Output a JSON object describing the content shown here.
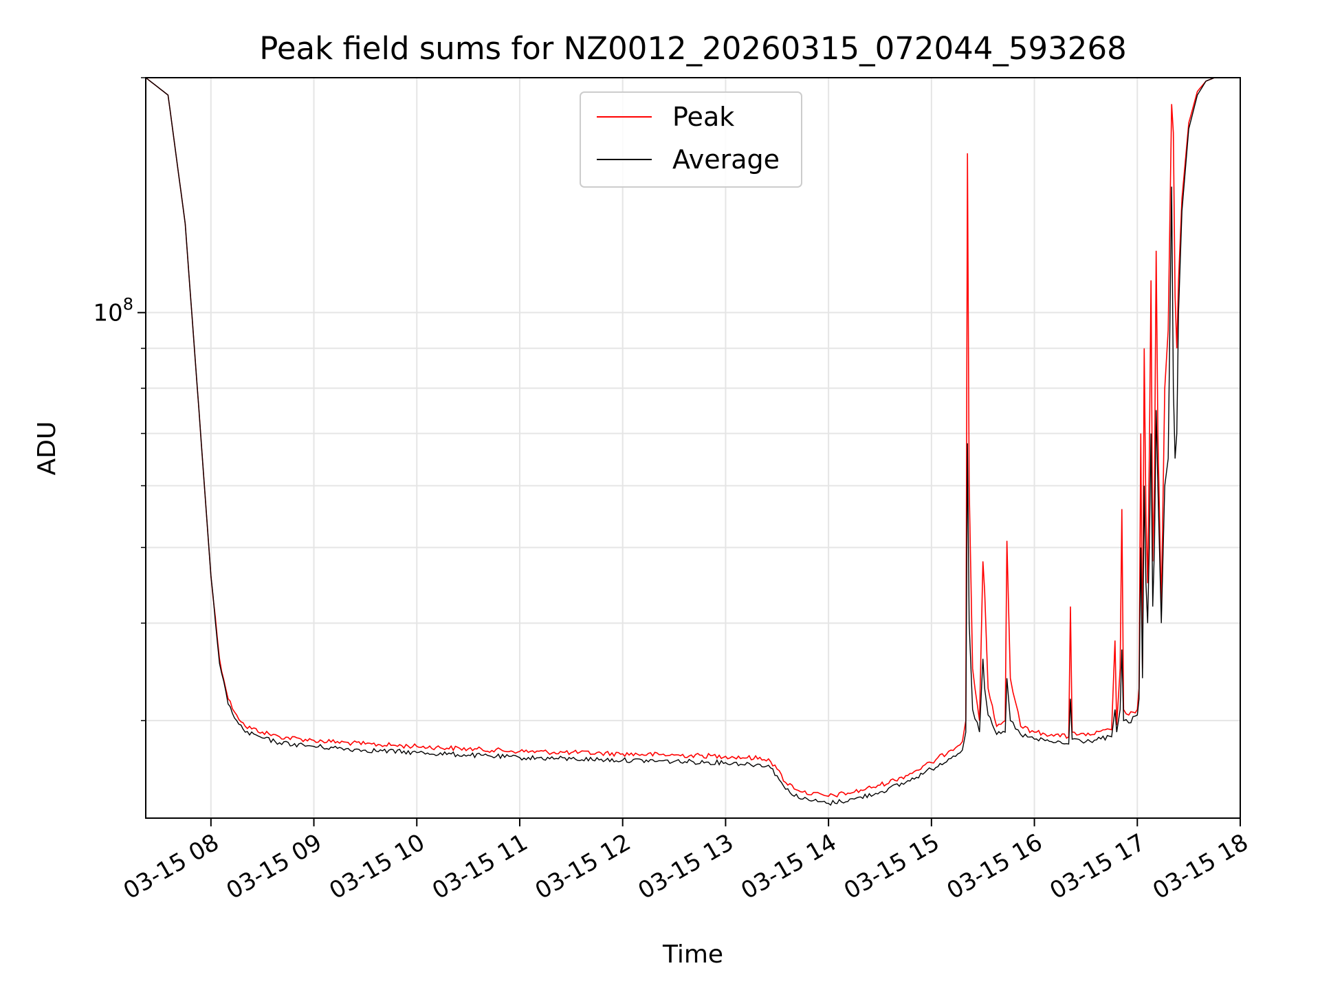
{
  "chart_data": {
    "type": "line",
    "title": "Peak field sums for NZ0012_20260315_072044_593268",
    "xlabel": "Time",
    "ylabel": "ADU",
    "x_scale": "time",
    "y_scale": "log",
    "grid": true,
    "grid_minor": true,
    "legend_position": "top-center",
    "xlim": [
      "2026-03-15 07:22",
      "2026-03-15 18:00"
    ],
    "ylim": [
      22500000.0,
      200000000.0
    ],
    "x_tick_labels": [
      "03-15 08",
      "03-15 09",
      "03-15 10",
      "03-15 11",
      "03-15 12",
      "03-15 13",
      "03-15 14",
      "03-15 15",
      "03-15 16",
      "03-15 17",
      "03-15 18"
    ],
    "x_ticks": [
      "2026-03-15 08:00",
      "2026-03-15 09:00",
      "2026-03-15 10:00",
      "2026-03-15 11:00",
      "2026-03-15 12:00",
      "2026-03-15 13:00",
      "2026-03-15 14:00",
      "2026-03-15 15:00",
      "2026-03-15 16:00",
      "2026-03-15 17:00",
      "2026-03-15 18:00"
    ],
    "y_major_ticks": [
      100000000
    ],
    "y_tick_labels": [
      "10^8"
    ],
    "y_minor_ticks": [
      30000000,
      40000000,
      50000000,
      60000000,
      70000000,
      80000000,
      90000000,
      200000000
    ],
    "series": [
      {
        "name": "Peak",
        "color": "#ff0000",
        "x": [
          "2026-03-15 07:22",
          "2026-03-15 07:35",
          "2026-03-15 07:45",
          "2026-03-15 07:53",
          "2026-03-15 08:00",
          "2026-03-15 08:05",
          "2026-03-15 08:10",
          "2026-03-15 08:15",
          "2026-03-15 08:20",
          "2026-03-15 08:30",
          "2026-03-15 08:40",
          "2026-03-15 09:00",
          "2026-03-15 09:30",
          "2026-03-15 10:00",
          "2026-03-15 10:30",
          "2026-03-15 11:00",
          "2026-03-15 11:30",
          "2026-03-15 12:00",
          "2026-03-15 12:30",
          "2026-03-15 13:00",
          "2026-03-15 13:25",
          "2026-03-15 13:30",
          "2026-03-15 13:35",
          "2026-03-15 13:45",
          "2026-03-15 14:00",
          "2026-03-15 14:15",
          "2026-03-15 14:30",
          "2026-03-15 14:45",
          "2026-03-15 15:00",
          "2026-03-15 15:10",
          "2026-03-15 15:18",
          "2026-03-15 15:20",
          "2026-03-15 15:21",
          "2026-03-15 15:22",
          "2026-03-15 15:24",
          "2026-03-15 15:28",
          "2026-03-15 15:30",
          "2026-03-15 15:31",
          "2026-03-15 15:33",
          "2026-03-15 15:38",
          "2026-03-15 15:43",
          "2026-03-15 15:44",
          "2026-03-15 15:46",
          "2026-03-15 15:52",
          "2026-03-15 16:00",
          "2026-03-15 16:10",
          "2026-03-15 16:20",
          "2026-03-15 16:21",
          "2026-03-15 16:22",
          "2026-03-15 16:30",
          "2026-03-15 16:45",
          "2026-03-15 16:47",
          "2026-03-15 16:48",
          "2026-03-15 16:50",
          "2026-03-15 16:51",
          "2026-03-15 16:52",
          "2026-03-15 16:55",
          "2026-03-15 17:00",
          "2026-03-15 17:01",
          "2026-03-15 17:02",
          "2026-03-15 17:03",
          "2026-03-15 17:04",
          "2026-03-15 17:05",
          "2026-03-15 17:06",
          "2026-03-15 17:07",
          "2026-03-15 17:08",
          "2026-03-15 17:09",
          "2026-03-15 17:10",
          "2026-03-15 17:11",
          "2026-03-15 17:12",
          "2026-03-15 17:14",
          "2026-03-15 17:16",
          "2026-03-15 17:18",
          "2026-03-15 17:20",
          "2026-03-15 17:21",
          "2026-03-15 17:22",
          "2026-03-15 17:23",
          "2026-03-15 17:24",
          "2026-03-15 17:26",
          "2026-03-15 17:30",
          "2026-03-15 17:35",
          "2026-03-15 17:40",
          "2026-03-15 17:45",
          "2026-03-15 17:50",
          "2026-03-15 18:00"
        ],
        "y": [
          200000000,
          190000000,
          130000000,
          75000000,
          46000000,
          36000000,
          32000000,
          30500000,
          29500000,
          29000000,
          28600000,
          28300000,
          28000000,
          27800000,
          27600000,
          27400000,
          27300000,
          27200000,
          27100000,
          27000000,
          26800000,
          26000000,
          25000000,
          24300000,
          24000000,
          24300000,
          24800000,
          25500000,
          26500000,
          27400000,
          28200000,
          30000000,
          160000000,
          60000000,
          35000000,
          30000000,
          48000000,
          44000000,
          33000000,
          29500000,
          30000000,
          51000000,
          34000000,
          29500000,
          29000000,
          28800000,
          28600000,
          42000000,
          29000000,
          28700000,
          29200000,
          38000000,
          29600000,
          35000000,
          56000000,
          31000000,
          30500000,
          31000000,
          33000000,
          70000000,
          35000000,
          90000000,
          55000000,
          45000000,
          65000000,
          110000000,
          48000000,
          60000000,
          120000000,
          70000000,
          42000000,
          80000000,
          95000000,
          185000000,
          170000000,
          105000000,
          90000000,
          110000000,
          140000000,
          175000000,
          192000000,
          198000000,
          200000000,
          200000000,
          200000000
        ]
      },
      {
        "name": "Average",
        "color": "#000000",
        "x": [
          "2026-03-15 07:22",
          "2026-03-15 07:35",
          "2026-03-15 07:45",
          "2026-03-15 07:53",
          "2026-03-15 08:00",
          "2026-03-15 08:05",
          "2026-03-15 08:10",
          "2026-03-15 08:15",
          "2026-03-15 08:20",
          "2026-03-15 08:30",
          "2026-03-15 08:40",
          "2026-03-15 09:00",
          "2026-03-15 09:30",
          "2026-03-15 10:00",
          "2026-03-15 10:30",
          "2026-03-15 11:00",
          "2026-03-15 11:30",
          "2026-03-15 12:00",
          "2026-03-15 12:30",
          "2026-03-15 13:00",
          "2026-03-15 13:25",
          "2026-03-15 13:30",
          "2026-03-15 13:35",
          "2026-03-15 13:45",
          "2026-03-15 14:00",
          "2026-03-15 14:15",
          "2026-03-15 14:30",
          "2026-03-15 14:45",
          "2026-03-15 15:00",
          "2026-03-15 15:10",
          "2026-03-15 15:18",
          "2026-03-15 15:20",
          "2026-03-15 15:21",
          "2026-03-15 15:22",
          "2026-03-15 15:24",
          "2026-03-15 15:28",
          "2026-03-15 15:30",
          "2026-03-15 15:31",
          "2026-03-15 15:33",
          "2026-03-15 15:38",
          "2026-03-15 15:43",
          "2026-03-15 15:44",
          "2026-03-15 15:46",
          "2026-03-15 15:52",
          "2026-03-15 16:00",
          "2026-03-15 16:10",
          "2026-03-15 16:20",
          "2026-03-15 16:21",
          "2026-03-15 16:22",
          "2026-03-15 16:30",
          "2026-03-15 16:45",
          "2026-03-15 16:47",
          "2026-03-15 16:48",
          "2026-03-15 16:50",
          "2026-03-15 16:51",
          "2026-03-15 16:52",
          "2026-03-15 16:55",
          "2026-03-15 17:00",
          "2026-03-15 17:01",
          "2026-03-15 17:02",
          "2026-03-15 17:03",
          "2026-03-15 17:04",
          "2026-03-15 17:05",
          "2026-03-15 17:06",
          "2026-03-15 17:07",
          "2026-03-15 17:08",
          "2026-03-15 17:09",
          "2026-03-15 17:10",
          "2026-03-15 17:11",
          "2026-03-15 17:12",
          "2026-03-15 17:14",
          "2026-03-15 17:16",
          "2026-03-15 17:18",
          "2026-03-15 17:20",
          "2026-03-15 17:21",
          "2026-03-15 17:22",
          "2026-03-15 17:23",
          "2026-03-15 17:24",
          "2026-03-15 17:26",
          "2026-03-15 17:30",
          "2026-03-15 17:35",
          "2026-03-15 17:40",
          "2026-03-15 17:45",
          "2026-03-15 17:50",
          "2026-03-15 18:00"
        ],
        "y": [
          200000000,
          190000000,
          130000000,
          75000000,
          46000000,
          35500000,
          31500000,
          30000000,
          29000000,
          28500000,
          28100000,
          27800000,
          27500000,
          27300000,
          27100000,
          26900000,
          26800000,
          26700000,
          26600000,
          26500000,
          26300000,
          25500000,
          24500000,
          23800000,
          23500000,
          23800000,
          24300000,
          25000000,
          26000000,
          26800000,
          27500000,
          29000000,
          68000000,
          40000000,
          31000000,
          29000000,
          36000000,
          33000000,
          30500000,
          28800000,
          29000000,
          34000000,
          30000000,
          28800000,
          28400000,
          28200000,
          28000000,
          32000000,
          28400000,
          28200000,
          28600000,
          31000000,
          29000000,
          31000000,
          37000000,
          30000000,
          29800000,
          30500000,
          32000000,
          50000000,
          34000000,
          60000000,
          45000000,
          40000000,
          50000000,
          70000000,
          42000000,
          50000000,
          75000000,
          60000000,
          40000000,
          60000000,
          65000000,
          145000000,
          80000000,
          65000000,
          70000000,
          100000000,
          135000000,
          172000000,
          190000000,
          198000000,
          200000000,
          200000000,
          200000000
        ]
      }
    ]
  }
}
